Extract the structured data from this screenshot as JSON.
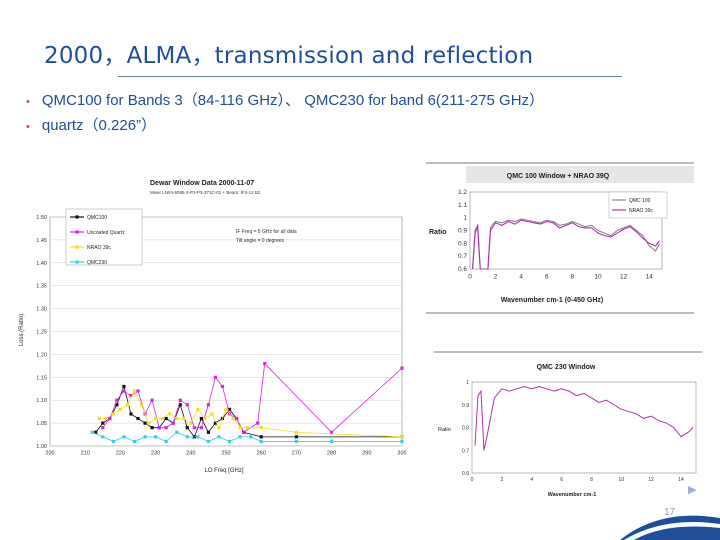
{
  "slide": {
    "title": "2000，ALMA，transmission and reflection",
    "bullets": [
      "QMC100 for Bands 3（84-116 GHz）、 QMC230 for band 6(211-275 GHz）",
      "quartz（0.226”）"
    ],
    "page_number": "17"
  },
  "colors": {
    "title": "#1f4e9a",
    "bullet_dot": "#d04070",
    "qmc100": "#111111",
    "uncoated_quartz": "#e020e0",
    "nrao_39c": "#f2e020",
    "qmc230": "#33cfe6",
    "plot_magenta": "#b030b0",
    "plot_gray": "#888888"
  },
  "chart_data": [
    {
      "type": "line",
      "title": "Dewar Window Data 2000-11-07",
      "subtitle": "Mixer LN#4-5095-2-P3-P3-371C-01 + Beam: IF4-12 B2",
      "xlabel": "LO Freq [GHz]",
      "ylabel": "Loss (Ratio)",
      "xlim": [
        200,
        300
      ],
      "ylim": [
        1.0,
        1.5
      ],
      "x_ticks": [
        "200",
        "210",
        "220",
        "230",
        "240",
        "250",
        "260",
        "270",
        "280",
        "290",
        "300"
      ],
      "y_ticks": [
        "1.00",
        "1.05",
        "1.10",
        "1.15",
        "1.20",
        "1.25",
        "1.30",
        "1.35",
        "1.40",
        "1.45",
        "1.50"
      ],
      "annotation": [
        "IF Freq = 5 GHz for all data",
        "Tilt angle = 0 degrees"
      ],
      "legend": "top-left",
      "series": [
        {
          "name": "QMC100",
          "color": "#111111",
          "x": [
            213,
            215,
            217,
            219,
            221,
            223,
            225,
            227,
            229,
            231,
            233,
            235,
            237,
            239,
            241,
            243,
            245,
            247,
            249,
            251,
            253,
            255,
            260,
            270,
            300
          ],
          "y": [
            1.03,
            1.05,
            1.06,
            1.09,
            1.13,
            1.07,
            1.06,
            1.05,
            1.04,
            1.04,
            1.06,
            1.05,
            1.09,
            1.04,
            1.02,
            1.06,
            1.03,
            1.05,
            1.06,
            1.08,
            1.06,
            1.03,
            1.02,
            1.02,
            1.02
          ]
        },
        {
          "name": "Uncoated Quartz",
          "color": "#e020e0",
          "x": [
            215,
            217,
            219,
            221,
            223,
            225,
            227,
            229,
            231,
            233,
            235,
            237,
            239,
            241,
            243,
            245,
            247,
            249,
            251,
            253,
            255,
            259,
            261,
            280,
            300
          ],
          "y": [
            1.04,
            1.06,
            1.1,
            1.12,
            1.11,
            1.12,
            1.07,
            1.1,
            1.04,
            1.04,
            1.05,
            1.1,
            1.09,
            1.04,
            1.04,
            1.09,
            1.15,
            1.13,
            1.07,
            1.06,
            1.03,
            1.05,
            1.18,
            1.03,
            1.17
          ]
        },
        {
          "name": "NRAO 39c",
          "color": "#f2e020",
          "x": [
            214,
            216,
            218,
            220,
            222,
            224,
            226,
            228,
            230,
            232,
            234,
            236,
            238,
            240,
            242,
            244,
            246,
            248,
            250,
            252,
            254,
            256,
            260,
            270,
            300
          ],
          "y": [
            1.06,
            1.06,
            1.07,
            1.08,
            1.09,
            1.12,
            1.09,
            1.05,
            1.06,
            1.06,
            1.07,
            1.06,
            1.06,
            1.05,
            1.08,
            1.06,
            1.07,
            1.04,
            1.08,
            1.06,
            1.04,
            1.04,
            1.04,
            1.03,
            1.02
          ]
        },
        {
          "name": "QMC230",
          "color": "#33cfe6",
          "x": [
            212,
            215,
            218,
            221,
            224,
            227,
            230,
            233,
            236,
            239,
            242,
            245,
            248,
            251,
            254,
            257,
            260,
            270,
            280,
            300
          ],
          "y": [
            1.03,
            1.02,
            1.01,
            1.02,
            1.01,
            1.02,
            1.02,
            1.01,
            1.03,
            1.02,
            1.02,
            1.01,
            1.02,
            1.01,
            1.02,
            1.02,
            1.01,
            1.01,
            1.01,
            1.01
          ]
        }
      ]
    },
    {
      "type": "line",
      "title": "QMC 100 Window + NRAO 39Q",
      "xlabel": "Wavenumber cm-1 (0-450 GHz)",
      "ylabel": "Ratio",
      "xlim": [
        0,
        15
      ],
      "ylim": [
        0.6,
        1.2
      ],
      "x_ticks": [
        "0",
        "2",
        "4",
        "6",
        "8",
        "10",
        "12",
        "14"
      ],
      "y_ticks": [
        "1.2",
        "1.1",
        "1",
        "0.9",
        "0.8",
        "0.7",
        "0.6"
      ],
      "legend": "top-right",
      "series": [
        {
          "name": "QMC 100",
          "color": "#888888",
          "x": [
            0.2,
            0.4,
            0.6,
            0.8,
            1.0,
            1.2,
            1.4,
            1.6,
            1.8,
            2.0,
            2.5,
            3.0,
            3.5,
            4.0,
            4.5,
            5.0,
            5.5,
            6.0,
            6.5,
            7.0,
            7.5,
            8.0,
            8.5,
            9.0,
            9.5,
            10.0,
            10.5,
            11.0,
            11.5,
            12.0,
            12.5,
            13.0,
            13.5,
            14.0,
            14.5,
            14.8
          ],
          "y": [
            0.6,
            0.88,
            0.92,
            0.6,
            0.6,
            0.6,
            0.6,
            0.92,
            0.95,
            0.97,
            0.96,
            0.98,
            0.97,
            0.99,
            0.98,
            0.97,
            0.96,
            0.98,
            0.97,
            0.94,
            0.95,
            0.97,
            0.95,
            0.93,
            0.94,
            0.9,
            0.88,
            0.86,
            0.9,
            0.92,
            0.94,
            0.9,
            0.86,
            0.78,
            0.74,
            0.8
          ]
        },
        {
          "name": "NRAO 39c",
          "color": "#b030b0",
          "x": [
            0.2,
            0.4,
            0.6,
            0.8,
            1.0,
            1.2,
            1.4,
            1.6,
            1.8,
            2.0,
            2.5,
            3.0,
            3.5,
            4.0,
            4.5,
            5.0,
            5.5,
            6.0,
            6.5,
            7.0,
            7.5,
            8.0,
            8.5,
            9.0,
            9.5,
            10.0,
            10.5,
            11.0,
            11.5,
            12.0,
            12.5,
            13.0,
            13.5,
            14.0,
            14.5,
            14.8
          ],
          "y": [
            0.6,
            0.9,
            0.94,
            0.6,
            0.6,
            0.6,
            0.6,
            0.9,
            0.93,
            0.96,
            0.94,
            0.97,
            0.95,
            0.98,
            0.97,
            0.96,
            0.95,
            0.97,
            0.96,
            0.92,
            0.94,
            0.96,
            0.93,
            0.92,
            0.92,
            0.88,
            0.86,
            0.85,
            0.88,
            0.91,
            0.93,
            0.89,
            0.84,
            0.8,
            0.78,
            0.82
          ]
        }
      ]
    },
    {
      "type": "line",
      "title": "QMC 230 Window",
      "xlabel": "Wavenumber cm-1",
      "ylabel": "Ratio",
      "xlim": [
        0,
        15
      ],
      "ylim": [
        0.6,
        1.0
      ],
      "x_ticks": [
        "0",
        "2",
        "4",
        "6",
        "8",
        "10",
        "12",
        "14"
      ],
      "y_ticks": [
        "1",
        "0.9",
        "0.8",
        "0.7",
        "0.6"
      ],
      "series": [
        {
          "name": "",
          "color": "#b030b0",
          "x": [
            0.2,
            0.4,
            0.6,
            0.8,
            1.0,
            1.5,
            2.0,
            2.5,
            3.0,
            3.5,
            4.0,
            4.5,
            5.0,
            5.5,
            6.0,
            6.5,
            7.0,
            7.5,
            8.0,
            8.5,
            9.0,
            9.5,
            10.0,
            10.5,
            11.0,
            11.5,
            12.0,
            12.5,
            13.0,
            13.5,
            14.0,
            14.5,
            14.8
          ],
          "y": [
            0.72,
            0.94,
            0.96,
            0.7,
            0.76,
            0.93,
            0.97,
            0.96,
            0.97,
            0.98,
            0.97,
            0.98,
            0.97,
            0.96,
            0.97,
            0.96,
            0.94,
            0.95,
            0.93,
            0.91,
            0.92,
            0.9,
            0.88,
            0.87,
            0.86,
            0.84,
            0.85,
            0.83,
            0.82,
            0.8,
            0.76,
            0.78,
            0.8
          ]
        }
      ]
    }
  ]
}
